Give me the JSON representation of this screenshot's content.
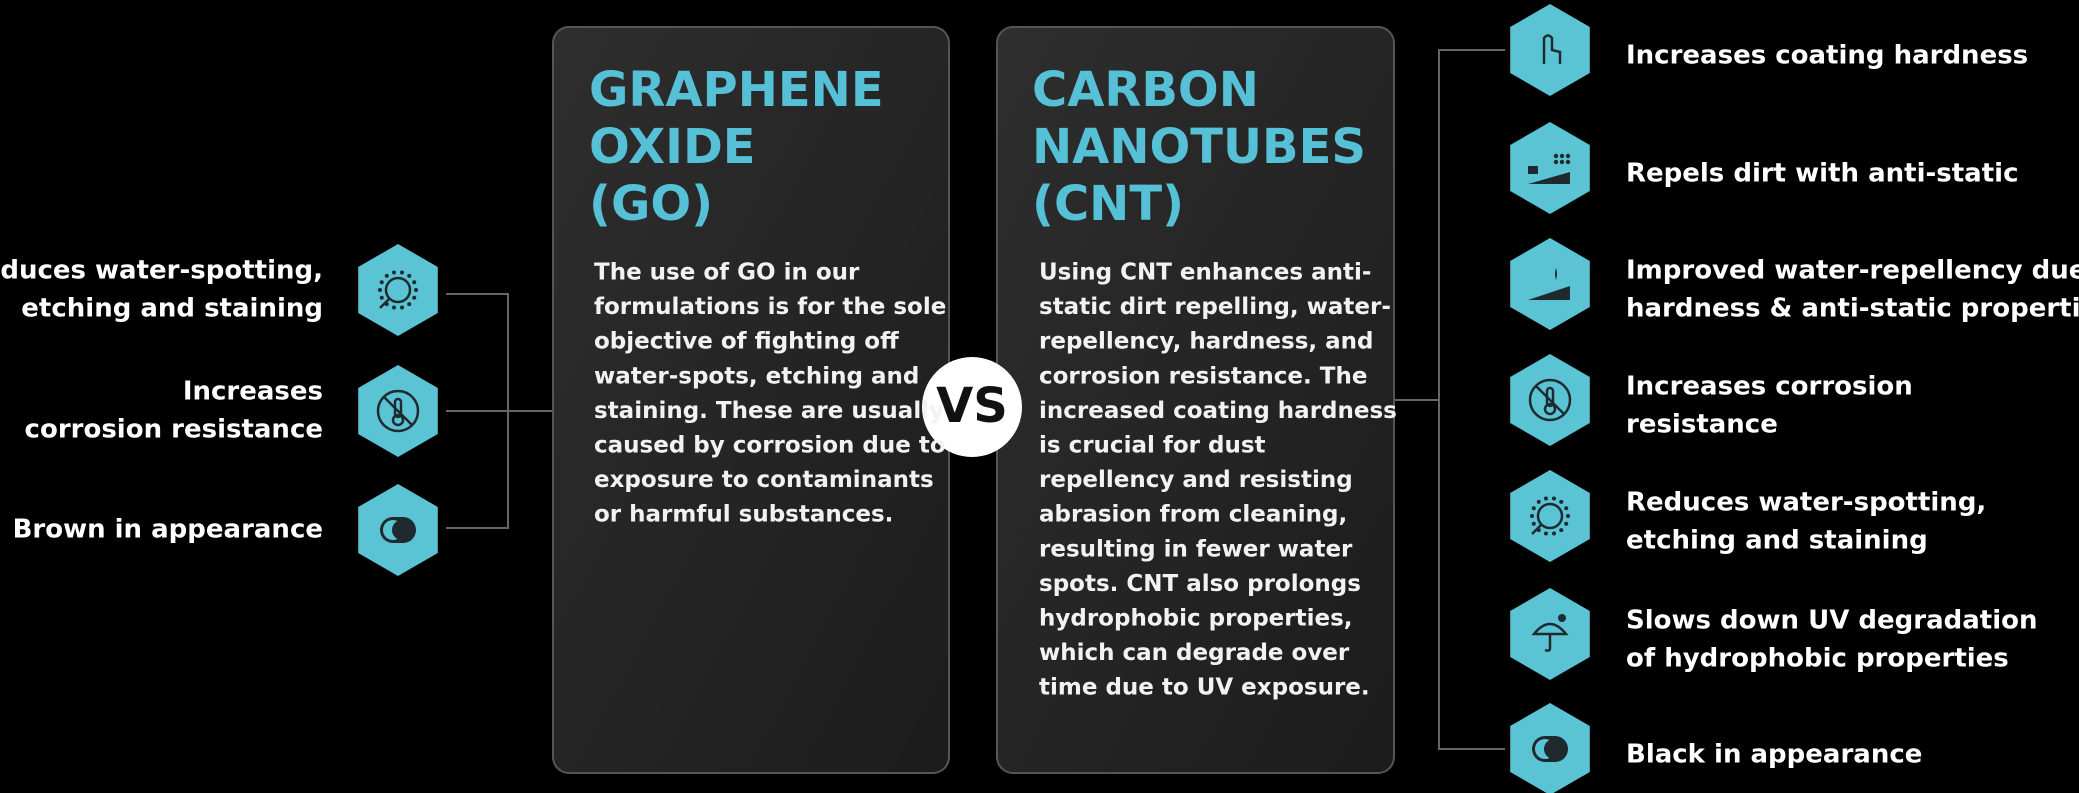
{
  "left": {
    "items": [
      {
        "lines": [
          "Reduces water-spotting,",
          "etching and staining"
        ]
      },
      {
        "lines": [
          "Increases",
          "corrosion resistance"
        ]
      },
      {
        "lines": [
          "Brown in appearance"
        ]
      }
    ]
  },
  "go_card": {
    "title": [
      "GRAPHENE",
      "OXIDE",
      "(GO)"
    ],
    "body": [
      "The use of GO in our",
      "formulations is for the sole",
      "objective of fighting off",
      "water-spots, etching and",
      "staining. These are usually",
      "caused by corrosion due to",
      "exposure to contaminants",
      "or harmful substances."
    ]
  },
  "vs": "VS",
  "cnt_card": {
    "title": [
      "CARBON",
      "NANOTUBES",
      "(CNT)"
    ],
    "body": [
      "Using CNT enhances anti-",
      "static dirt repelling, water-",
      "repellency, hardness, and",
      "corrosion resistance. The",
      "increased coating hardness",
      "is crucial for dust",
      "repellency and resisting",
      "abrasion from cleaning,",
      "resulting in fewer water",
      "spots. CNT also prolongs",
      "hydrophobic properties,",
      "which can degrade over",
      "time due to UV exposure."
    ]
  },
  "right": {
    "items": [
      {
        "lines": [
          "Increases coating hardness"
        ]
      },
      {
        "lines": [
          "Repels dirt with anti-static"
        ]
      },
      {
        "lines": [
          "Improved water-repellency due to",
          "hardness & anti-static properties"
        ]
      },
      {
        "lines": [
          "Increases corrosion",
          "resistance"
        ]
      },
      {
        "lines": [
          "Reduces water-spotting,",
          "etching and staining"
        ]
      },
      {
        "lines": [
          "Slows down UV degradation",
          "of hydrophobic properties"
        ]
      },
      {
        "lines": [
          "Black in appearance"
        ]
      }
    ]
  }
}
